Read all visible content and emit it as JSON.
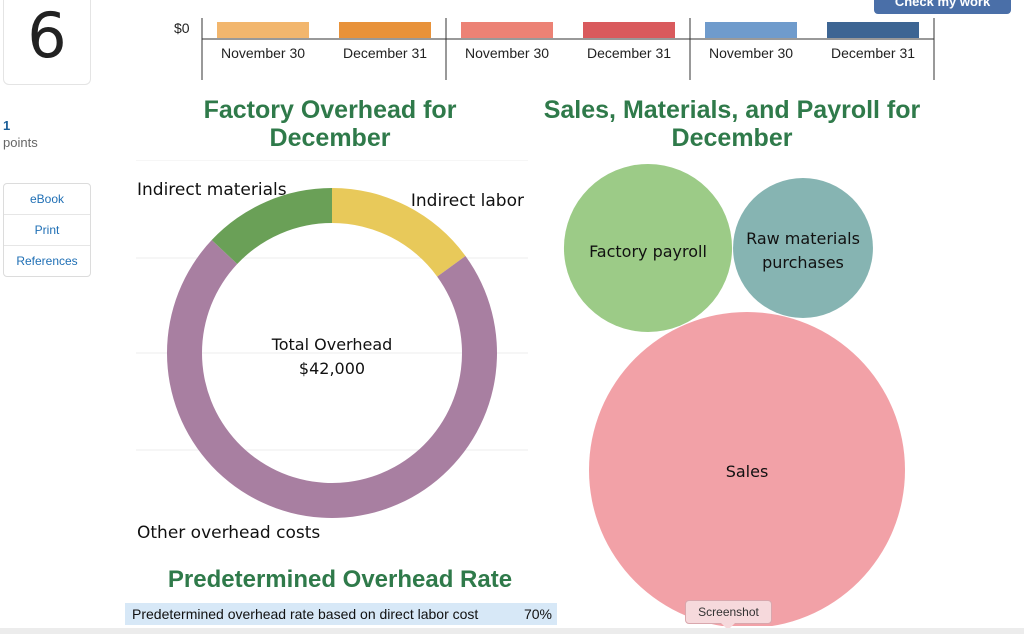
{
  "question": {
    "number": "6",
    "points_value": "1",
    "points_label": "points"
  },
  "tools": [
    "eBook",
    "Print",
    "References"
  ],
  "header": {
    "check_button": "Check my work"
  },
  "top_chart": {
    "zero_label": "$0",
    "groups": [
      {
        "bars": [
          {
            "label": "November 30",
            "color": "#f2b66d"
          },
          {
            "label": "December 31",
            "color": "#e8923a"
          }
        ]
      },
      {
        "bars": [
          {
            "label": "November 30",
            "color": "#ec8275"
          },
          {
            "label": "December 31",
            "color": "#d95a5d"
          }
        ]
      },
      {
        "bars": [
          {
            "label": "November 30",
            "color": "#6f9bcc"
          },
          {
            "label": "December 31",
            "color": "#3d6593"
          }
        ]
      }
    ]
  },
  "factory_overhead": {
    "title": "Factory Overhead for December",
    "center_title": "Total Overhead",
    "center_value": "$42,000"
  },
  "materials_payroll": {
    "title": "Sales, Materials, and Payroll for December"
  },
  "predetermined": {
    "title": "Predetermined Overhead Rate",
    "row_label": "Predetermined overhead rate based on direct labor cost",
    "row_value": "70%"
  },
  "tooltip": {
    "label": "Screenshot"
  },
  "chart_data": [
    {
      "type": "pie",
      "title": "Factory Overhead for December",
      "center_label": "Total Overhead",
      "center_value": "$42,000",
      "categories": [
        "Indirect labor",
        "Other overhead costs",
        "Indirect materials"
      ],
      "values": [
        15,
        72,
        13
      ],
      "colors": [
        "#e8c95a",
        "#a87fa1",
        "#6aa057"
      ]
    },
    {
      "type": "scatter",
      "title": "Sales, Materials, and Payroll for December",
      "categories": [
        "Factory payroll",
        "Raw materials purchases",
        "Sales"
      ],
      "values": [
        28300,
        19600,
        100000
      ],
      "colors": [
        "#9ccb87",
        "#86b4b2",
        "#f2a1a7"
      ]
    }
  ]
}
